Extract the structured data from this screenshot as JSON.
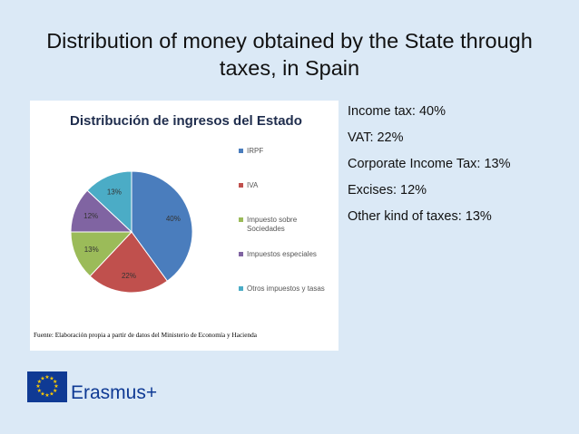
{
  "slide": {
    "title": "Distribution of money obtained by the State through taxes, in Spain",
    "bullets": [
      "Income tax: 40%",
      "VAT: 22%",
      "Corporate Income Tax: 13%",
      "Excises: 12%",
      "Other kind of taxes: 13%"
    ]
  },
  "logo": {
    "text": "Erasmus+",
    "icon": "eu-flag-icon",
    "color": "#0f3a94"
  },
  "chart_data": {
    "type": "pie",
    "title": "Distribución de ingresos del Estado",
    "categories": [
      "IRPF",
      "IVA",
      "Impuesto sobre Sociedades",
      "Impuestos especiales",
      "Otros impuestos y tasas"
    ],
    "values": [
      40,
      22,
      13,
      12,
      13
    ],
    "value_labels": [
      "40%",
      "22%",
      "13%",
      "12%",
      "13%"
    ],
    "colors": [
      "#4a7dbd",
      "#c0504d",
      "#9bbb59",
      "#8064a2",
      "#4bacc6"
    ],
    "legend_position": "right",
    "source": "Fuente: Elaboración propia a partir de datos del Ministerio de Economía y Hacienda"
  }
}
